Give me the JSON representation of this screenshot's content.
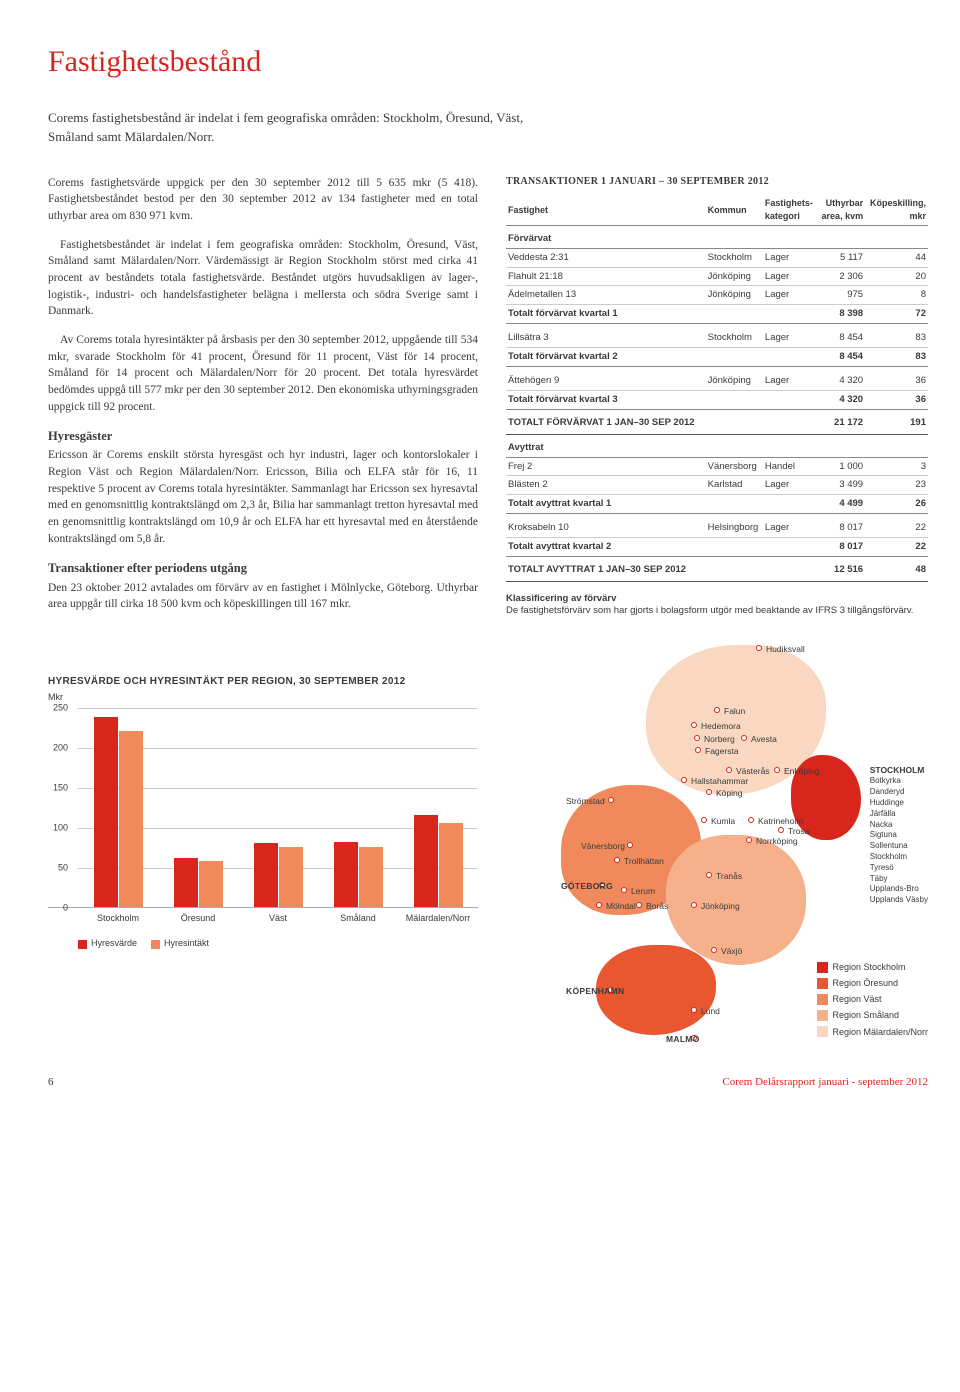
{
  "colors": {
    "accent": "#d9261c",
    "bar_series_a": "#d9261c",
    "bar_series_b": "#f08a5d",
    "region_stockholm": "#d9261c",
    "region_oresund": "#e8572f",
    "region_vast": "#f08a5d",
    "region_smaland": "#f6b08c",
    "region_malardalen": "#fad7c0",
    "grid": "#cccccc",
    "text": "#3a3a3a"
  },
  "title": "Fastighetsbestånd",
  "intro": "Corems fastighetsbestånd är indelat i fem geografiska områden: Stockholm, Öresund, Väst, Småland samt Mälardalen/Norr.",
  "para1": "Corems fastighetsvärde uppgick per den 30 september 2012 till 5 635 mkr (5 418). Fastighetsbeståndet bestod per den 30 september 2012 av 134 fastigheter med en total uthyrbar area om 830 971 kvm.",
  "para2": "Fastighetsbeståndet är indelat i fem geografiska områden: Stockholm, Öresund, Väst, Småland samt Mälardalen/Norr. Värdemässigt är Region Stockholm störst med cirka 41 procent av beståndets totala fastighetsvärde. Beståndet utgörs huvudsakligen av lager-, logistik-, industri- och handelsfastigheter belägna i mellersta och södra Sverige samt i Danmark.",
  "para3": "Av Corems totala hyresintäkter på årsbasis per den 30 september 2012, uppgående till 534 mkr, svarade Stockholm för 41 procent, Öresund för 11 procent, Väst för 14 procent, Småland för 14 procent och Mälardalen/Norr för 20 procent. Det totala hyresvärdet bedömdes uppgå till 577 mkr per den 30 september 2012. Den ekonomiska uthyrningsgraden uppgick till 92 procent.",
  "hyresgaster_head": "Hyresgäster",
  "hyresgaster_body": "Ericsson är Corems enskilt största hyresgäst och hyr industri, lager och kontorslokaler i Region Väst och Region Mälardalen/Norr. Ericsson, Bilia och ELFA står för 16, 11 respektive 5 procent av Corems totala hyresintäkter. Sammanlagt har Ericsson sex hyresavtal med en genomsnittlig kontraktslängd om 2,3 år, Bilia har sammanlagt tretton hyresavtal med en genomsnittlig kontraktslängd om 10,9 år och ELFA har ett hyresavtal med en återstående kontraktslängd om 5,8 år.",
  "trans_after_head": "Transaktioner efter periodens utgång",
  "trans_after_body": "Den 23 oktober 2012 avtalades om förvärv av en fastighet i Mölnlycke, Göteborg. Uthyrbar area uppgår till cirka 18 500 kvm och köpeskillingen till 167 mkr.",
  "trans_title": "TRANSAKTIONER 1 JANUARI – 30 SEPTEMBER 2012",
  "trans_headers": [
    "Fastighet",
    "Kommun",
    "Fastighets-\nkategori",
    "Uthyrbar\narea, kvm",
    "Köpeskilling,\nmkr"
  ],
  "section_forvarvat": "Förvärvat",
  "section_avyttrat": "Avyttrat",
  "rows_forvarvat_q1": [
    [
      "Veddesta 2:31",
      "Stockholm",
      "Lager",
      "5 117",
      "44"
    ],
    [
      "Flahult 21:18",
      "Jönköping",
      "Lager",
      "2 306",
      "20"
    ],
    [
      "Ädelmetallen 13",
      "Jönköping",
      "Lager",
      "975",
      "8"
    ]
  ],
  "total_forvarvat_q1": [
    "Totalt förvärvat kvartal 1",
    "",
    "",
    "8 398",
    "72"
  ],
  "rows_forvarvat_q2": [
    [
      "Lillsätra 3",
      "Stockholm",
      "Lager",
      "8 454",
      "83"
    ]
  ],
  "total_forvarvat_q2": [
    "Totalt förvärvat kvartal 2",
    "",
    "",
    "8 454",
    "83"
  ],
  "rows_forvarvat_q3": [
    [
      "Ättehögen 9",
      "Jönköping",
      "Lager",
      "4 320",
      "36"
    ]
  ],
  "total_forvarvat_q3": [
    "Totalt förvärvat kvartal 3",
    "",
    "",
    "4 320",
    "36"
  ],
  "grand_forvarvat": [
    "TOTALT FÖRVÄRVAT 1 JAN–30 SEP 2012",
    "",
    "",
    "21 172",
    "191"
  ],
  "rows_avyttrat_q1": [
    [
      "Frej 2",
      "Vänersborg",
      "Handel",
      "1 000",
      "3"
    ],
    [
      "Blästen 2",
      "Karlstad",
      "Lager",
      "3 499",
      "23"
    ]
  ],
  "total_avyttrat_q1": [
    "Totalt avyttrat kvartal 1",
    "",
    "",
    "4 499",
    "26"
  ],
  "rows_avyttrat_q2": [
    [
      "Kroksabeln 10",
      "Helsingborg",
      "Lager",
      "8 017",
      "22"
    ]
  ],
  "total_avyttrat_q2": [
    "Totalt avyttrat kvartal 2",
    "",
    "",
    "8 017",
    "22"
  ],
  "grand_avyttrat": [
    "TOTALT AVYTTRAT 1 JAN–30 SEP 2012",
    "",
    "",
    "12 516",
    "48"
  ],
  "klass_head": "Klassificering av förvärv",
  "klass_body": "De fastighetsförvärv som har gjorts i bolagsform utgör med beaktande av IFRS 3 tillgångsförvärv.",
  "chart": {
    "title": "HYRESVÄRDE OCH HYRESINTÄKT PER REGION, 30 SEPTEMBER 2012",
    "unit": "Mkr",
    "ymax": 250,
    "yticks": [
      0,
      50,
      100,
      150,
      200,
      250
    ],
    "categories": [
      "Stockholm",
      "Öresund",
      "Väst",
      "Småland",
      "Mälardalen/Norr"
    ],
    "series": [
      {
        "name": "Hyresvärde",
        "color": "#d9261c",
        "values": [
          238,
          62,
          80,
          82,
          115
        ]
      },
      {
        "name": "Hyresintäkt",
        "color": "#f08a5d",
        "values": [
          220,
          58,
          75,
          76,
          105
        ]
      }
    ]
  },
  "map": {
    "cities_top": [
      "Hudiksvall",
      "Falun",
      "Hedemora",
      "Norberg",
      "Avesta",
      "Fagersta"
    ],
    "cities_mid": [
      "Västerås",
      "Enköping",
      "Hallstahammar",
      "Köping",
      "Strömstad",
      "Kumla",
      "Katrineholm",
      "Trosa",
      "Norrköping"
    ],
    "cities_west": [
      "Vänersborg",
      "Trollhättan",
      "Tranås",
      "GÖTEBORG",
      "Lerum",
      "Mölndal",
      "Borås",
      "Jönköping"
    ],
    "cities_south": [
      "Växjö",
      "KÖPENHAMN",
      "Lund",
      "MALMÖ"
    ],
    "sthlm_head": "STOCKHOLM",
    "sthlm_list": [
      "Botkyrka",
      "Danderyd",
      "Huddinge",
      "Järfälla",
      "Nacka",
      "Sigtuna",
      "Sollentuna",
      "Stockholm",
      "Tyresö",
      "Täby",
      "Upplands-Bro",
      "Upplands Väsby"
    ],
    "legend": [
      {
        "label": "Region Stockholm",
        "color": "#d9261c"
      },
      {
        "label": "Region Öresund",
        "color": "#e8572f"
      },
      {
        "label": "Region Väst",
        "color": "#f08a5d"
      },
      {
        "label": "Region Småland",
        "color": "#f6b08c"
      },
      {
        "label": "Region Mälardalen/Norr",
        "color": "#fad7c0"
      }
    ]
  },
  "footer": {
    "page": "6",
    "right": "Corem Delårsrapport januari - september 2012"
  }
}
